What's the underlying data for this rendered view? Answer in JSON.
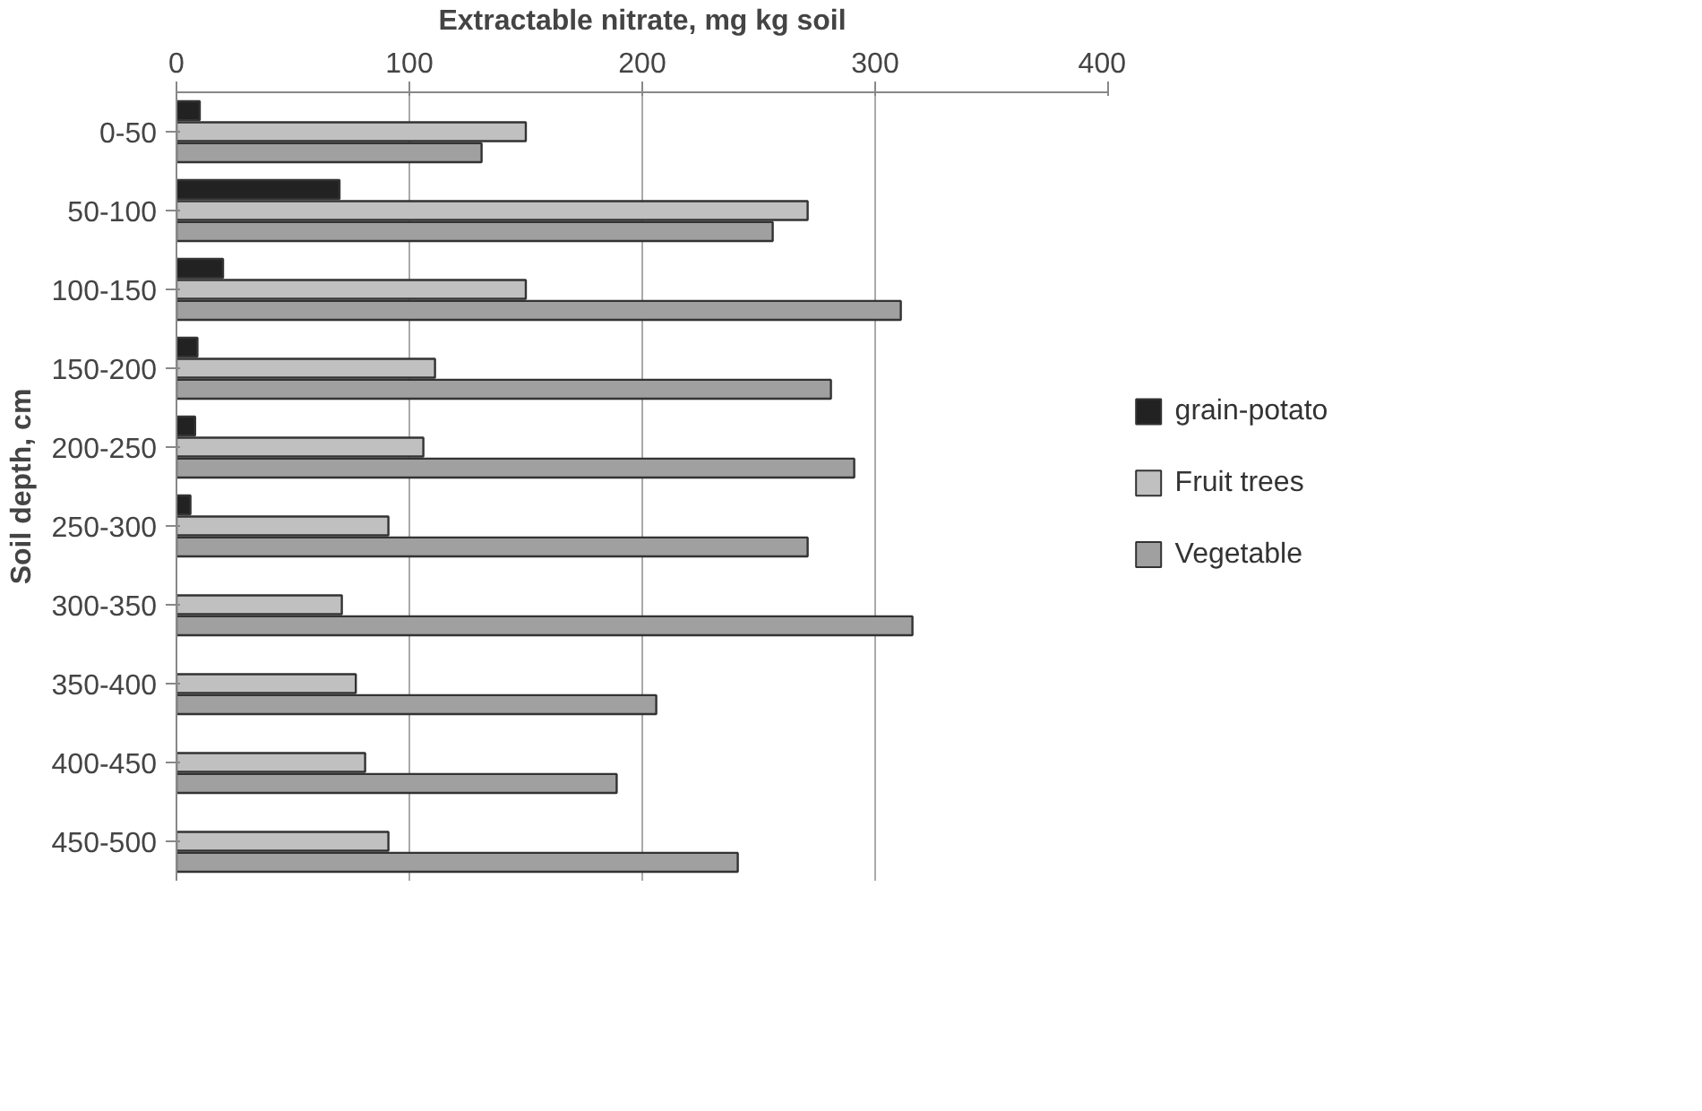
{
  "chart_data": {
    "type": "bar",
    "orientation": "horizontal",
    "xlabel": "Extractable nitrate, mg kg soil",
    "ylabel": "Soil depth, cm",
    "categories": [
      "0-50",
      "50-100",
      "100-150",
      "150-200",
      "200-250",
      "250-300",
      "300-350",
      "350-400",
      "400-450",
      "450-500"
    ],
    "series": [
      {
        "name": "grain-potato",
        "color": "#222222",
        "values": [
          10,
          70,
          20,
          9,
          8,
          6,
          null,
          null,
          null,
          null
        ]
      },
      {
        "name": "Fruit trees",
        "color": "#c0c0c0",
        "values": [
          150,
          271,
          150,
          111,
          106,
          91,
          71,
          77,
          81,
          91
        ]
      },
      {
        "name": "Vegetable",
        "color": "#a0a0a0",
        "values": [
          131,
          256,
          311,
          281,
          291,
          271,
          316,
          206,
          189,
          241
        ]
      }
    ],
    "xlim": [
      0,
      400
    ],
    "xticks": [
      0,
      100,
      200,
      300,
      400
    ],
    "grid": "x",
    "legend": "right"
  }
}
